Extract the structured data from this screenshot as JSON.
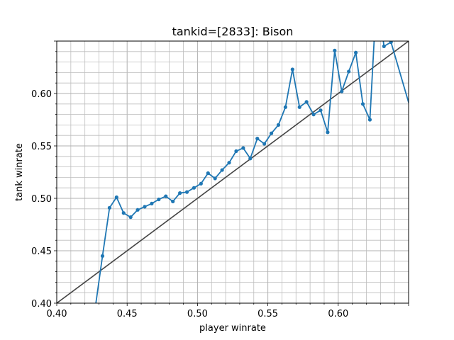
{
  "chart_data": {
    "type": "line",
    "title": "tankid=[2833]: Bison",
    "xlabel": "player winrate",
    "ylabel": "tank winrate",
    "xlim": [
      0.4,
      0.65
    ],
    "ylim": [
      0.4,
      0.65
    ],
    "x_ticks": [
      "0.40",
      "0.45",
      "0.50",
      "0.55",
      "0.60"
    ],
    "y_ticks": [
      "0.40",
      "0.45",
      "0.50",
      "0.55",
      "0.60"
    ],
    "grid": "major and minor",
    "reference_line": {
      "from": [
        0.4,
        0.4
      ],
      "to": [
        0.65,
        0.65
      ],
      "color": "#444444"
    },
    "series": [
      {
        "color": "#1f77b4",
        "x": [
          0.4275,
          0.4325,
          0.4375,
          0.4425,
          0.4475,
          0.4525,
          0.4575,
          0.4625,
          0.4675,
          0.4725,
          0.4775,
          0.4825,
          0.4875,
          0.4925,
          0.4975,
          0.5025,
          0.5075,
          0.5125,
          0.5175,
          0.5225,
          0.5275,
          0.5325,
          0.5375,
          0.5425,
          0.5475,
          0.5525,
          0.5575,
          0.5625,
          0.5675,
          0.5725,
          0.5775,
          0.5825,
          0.5875,
          0.5925,
          0.5975,
          0.6025,
          0.6075,
          0.6125,
          0.6175,
          0.6225,
          0.6275,
          0.6325,
          0.6375,
          0.6525
        ],
        "y": [
          0.397,
          0.445,
          0.491,
          0.501,
          0.486,
          0.482,
          0.489,
          0.492,
          0.495,
          0.499,
          0.502,
          0.497,
          0.505,
          0.506,
          0.51,
          0.514,
          0.524,
          0.519,
          0.527,
          0.534,
          0.545,
          0.548,
          0.538,
          0.557,
          0.552,
          0.562,
          0.57,
          0.587,
          0.623,
          0.587,
          0.592,
          0.58,
          0.584,
          0.563,
          0.641,
          0.602,
          0.621,
          0.639,
          0.59,
          0.575,
          0.7,
          0.645,
          0.649,
          0.58
        ],
        "marker_count": 43
      }
    ]
  }
}
